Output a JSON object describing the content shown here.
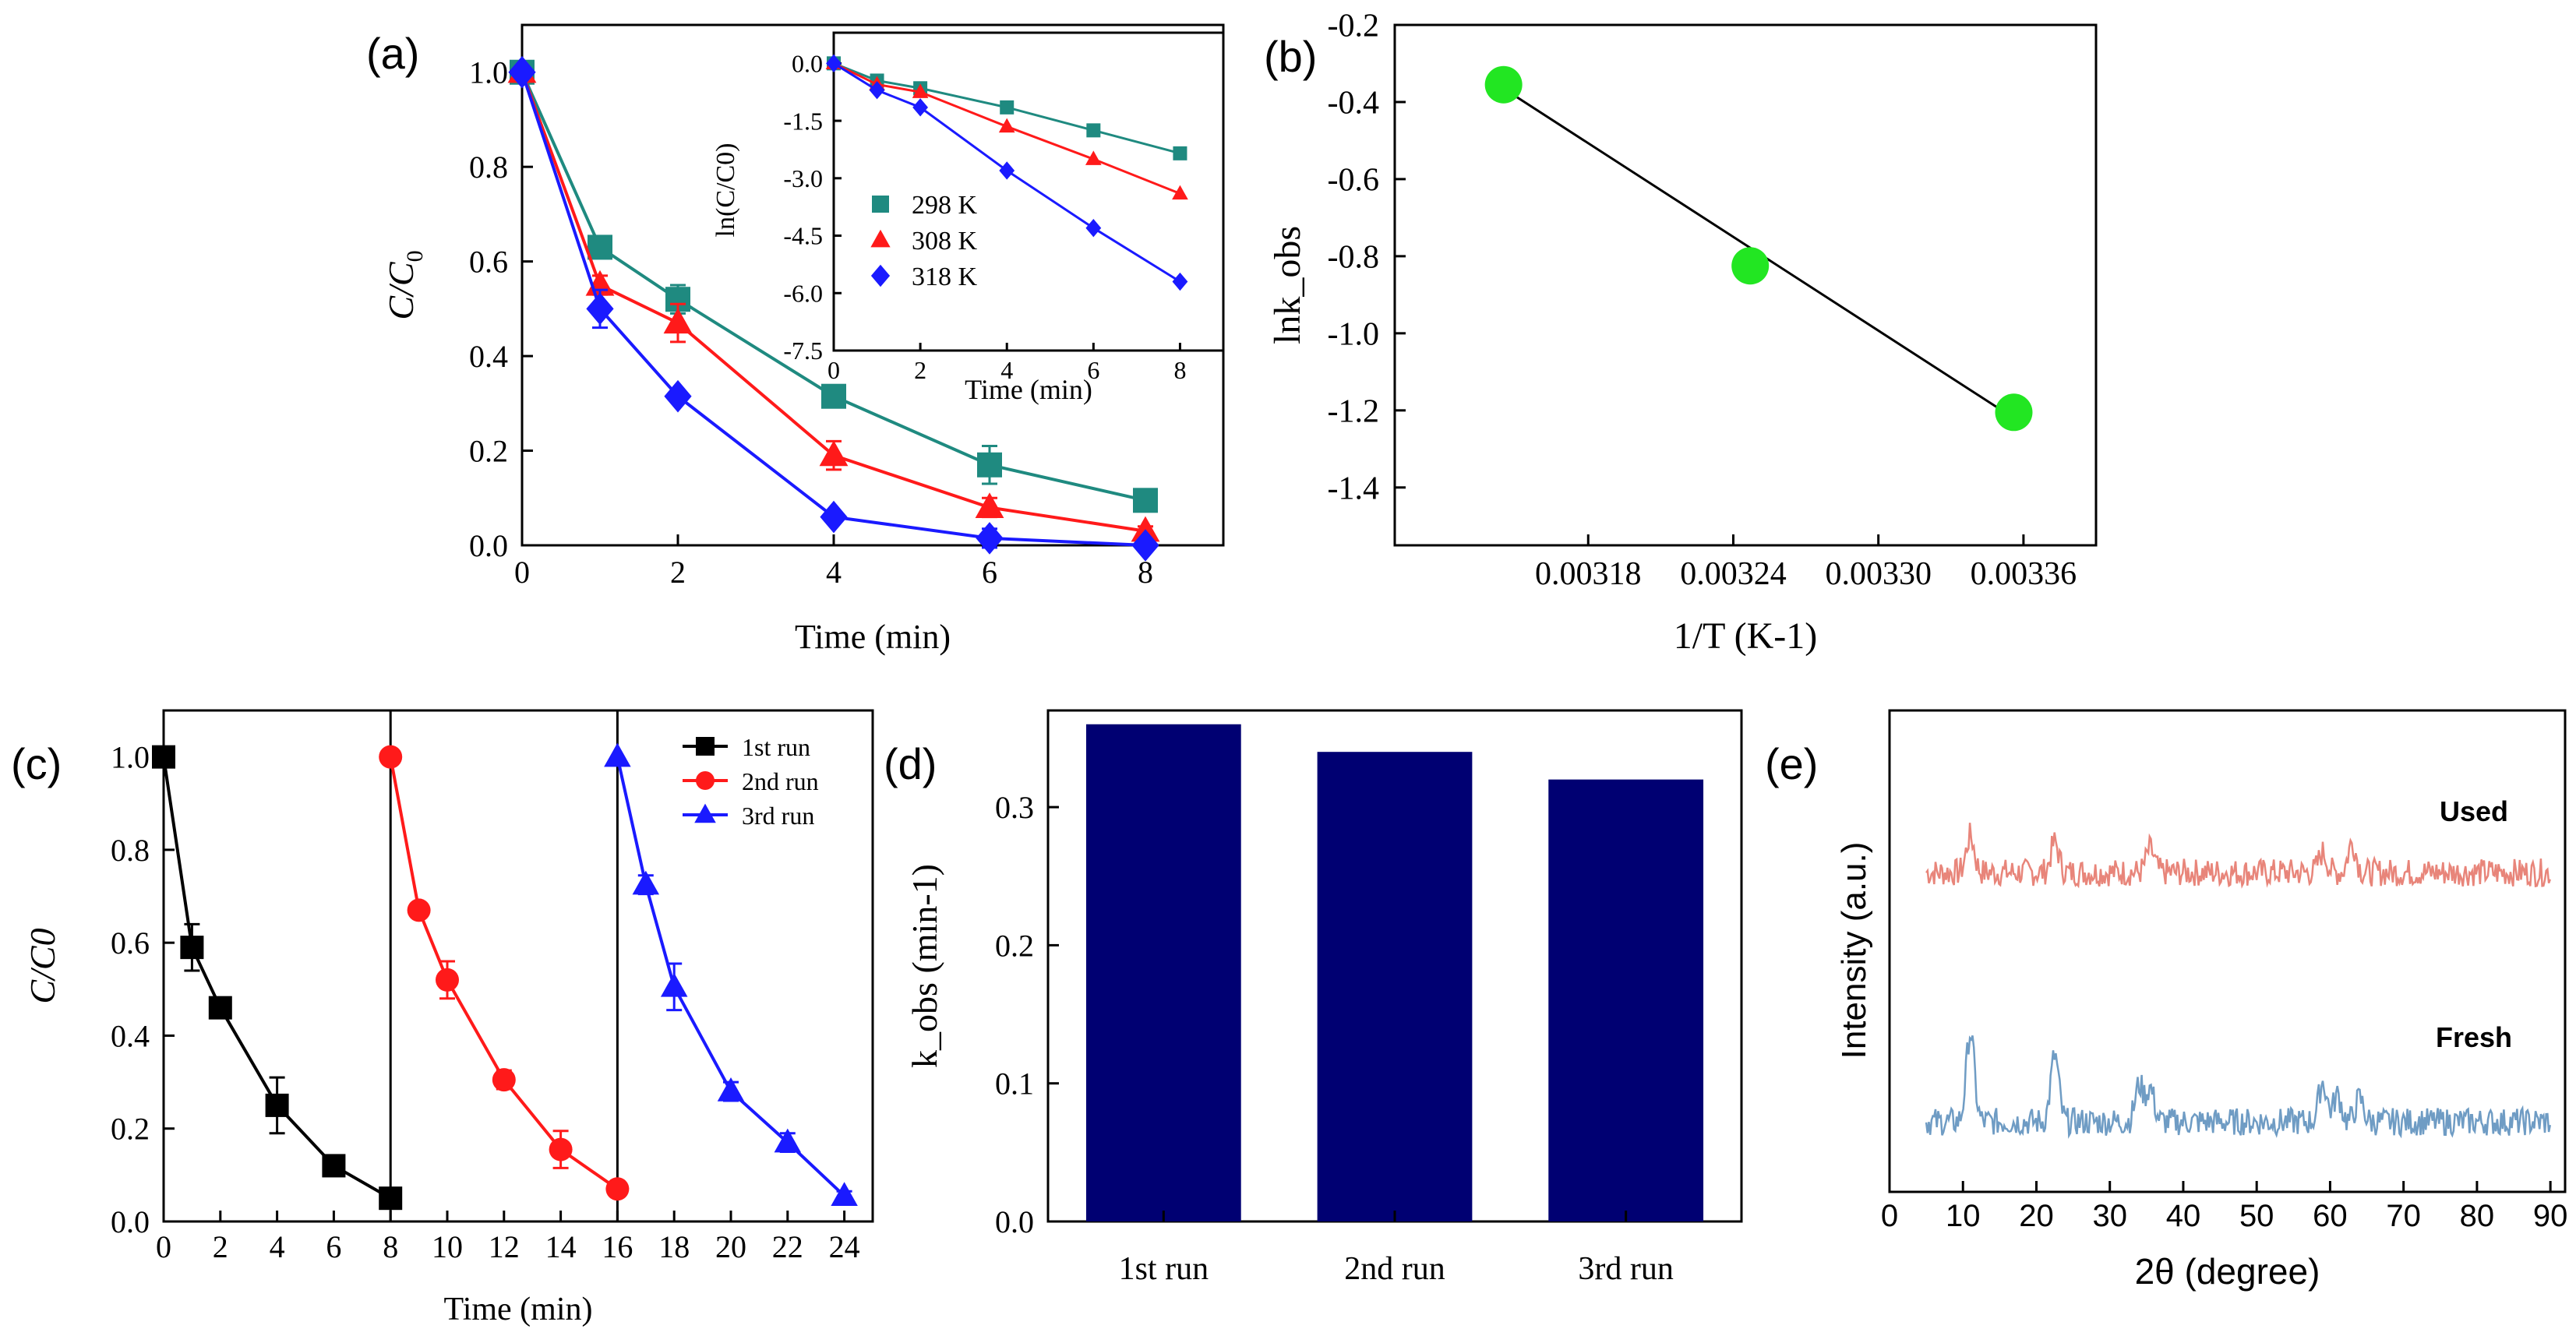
{
  "chart_data": [
    {
      "id": "a",
      "type": "line",
      "panel_label": "(a)",
      "xlabel": "Time (min)",
      "ylabel": "C/C0",
      "ylabel_main": "C/C",
      "ylabel_sub": "0",
      "xlim": [
        0,
        9
      ],
      "ylim": [
        0,
        1.1
      ],
      "xticks": [
        0,
        2,
        4,
        6,
        8
      ],
      "yticks": [
        0.0,
        0.2,
        0.4,
        0.6,
        0.8,
        1.0
      ],
      "xtick_labels": [
        "0",
        "2",
        "4",
        "6",
        "8"
      ],
      "ytick_labels": [
        "0.0",
        "0.2",
        "0.4",
        "0.6",
        "0.8",
        "1.0"
      ],
      "x": [
        0,
        1,
        2,
        4,
        6,
        8
      ],
      "series": [
        {
          "name": "298 K",
          "color": "#1f8a80",
          "marker": "square",
          "values": [
            1.0,
            0.63,
            0.52,
            0.315,
            0.17,
            0.095
          ],
          "errors": [
            0,
            0.02,
            0.03,
            0.015,
            0.04,
            0.01
          ]
        },
        {
          "name": "308 K",
          "color": "#ff1a1a",
          "marker": "triangle",
          "values": [
            1.0,
            0.55,
            0.47,
            0.19,
            0.08,
            0.03
          ],
          "errors": [
            0,
            0.02,
            0.04,
            0.03,
            0.02,
            0.01
          ]
        },
        {
          "name": "318 K",
          "color": "#1a1aff",
          "marker": "diamond",
          "values": [
            1.0,
            0.5,
            0.315,
            0.06,
            0.015,
            0.0
          ],
          "errors": [
            0,
            0.04,
            0.01,
            0.01,
            0.02,
            0
          ]
        }
      ],
      "inset": {
        "xlabel": "Time (min)",
        "ylabel": "ln(C/C0)",
        "xlim": [
          0,
          9
        ],
        "ylim": [
          -7.5,
          0.8
        ],
        "xticks": [
          0,
          2,
          4,
          6,
          8
        ],
        "yticks": [
          0.0,
          -1.5,
          -3.0,
          -4.5,
          -6.0,
          -7.5
        ],
        "xtick_labels": [
          "0",
          "2",
          "4",
          "6",
          "8"
        ],
        "ytick_labels": [
          "0.0",
          "-1.5",
          "-3.0",
          "-4.5",
          "-6.0",
          "-7.5"
        ],
        "x": [
          0,
          1,
          2,
          4,
          6,
          8
        ],
        "series": [
          {
            "name": "298 K",
            "color": "#1f8a80",
            "marker": "square",
            "values": [
              0.0,
              -0.45,
              -0.65,
              -1.15,
              -1.75,
              -2.35
            ]
          },
          {
            "name": "308 K",
            "color": "#ff1a1a",
            "marker": "triangle",
            "values": [
              0.0,
              -0.55,
              -0.75,
              -1.65,
              -2.5,
              -3.4
            ]
          },
          {
            "name": "318 K",
            "color": "#1a1aff",
            "marker": "diamond",
            "values": [
              0.0,
              -0.7,
              -1.15,
              -2.8,
              -4.3,
              -5.7
            ]
          }
        ]
      }
    },
    {
      "id": "b",
      "type": "scatter",
      "panel_label": "(b)",
      "xlabel": "1/T (K-1)",
      "ylabel": "lnk_obs",
      "xlim": [
        0.0031,
        0.00339
      ],
      "ylim": [
        -1.55,
        -0.2
      ],
      "xticks": [
        0.00318,
        0.00324,
        0.0033,
        0.00336
      ],
      "yticks": [
        -0.2,
        -0.4,
        -0.6,
        -0.8,
        -1.0,
        -1.2,
        -1.4
      ],
      "xtick_labels": [
        "0.00318",
        "0.00324",
        "0.00330",
        "0.00336"
      ],
      "ytick_labels": [
        "-0.2",
        "-0.4",
        "-0.6",
        "-0.8",
        "-1.0",
        "-1.2",
        "-1.4"
      ],
      "points": [
        {
          "x": 0.003145,
          "y": -0.355
        },
        {
          "x": 0.003247,
          "y": -0.825
        },
        {
          "x": 0.003356,
          "y": -1.205
        }
      ],
      "fit_line": [
        [
          0.003145,
          -0.365
        ],
        [
          0.003356,
          -1.22
        ]
      ],
      "marker_color": "#22e622"
    },
    {
      "id": "c",
      "type": "line",
      "panel_label": "(c)",
      "xlabel": "Time (min)",
      "ylabel": "C/C0",
      "xlim": [
        0,
        25
      ],
      "ylim": [
        0,
        1.1
      ],
      "xticks": [
        0,
        2,
        4,
        6,
        8,
        10,
        12,
        14,
        16,
        18,
        20,
        22,
        24
      ],
      "yticks": [
        0.0,
        0.2,
        0.4,
        0.6,
        0.8,
        1.0
      ],
      "xtick_labels": [
        "0",
        "2",
        "4",
        "6",
        "8",
        "10",
        "12",
        "14",
        "16",
        "18",
        "20",
        "22",
        "24"
      ],
      "ytick_labels": [
        "0.0",
        "0.2",
        "0.4",
        "0.6",
        "0.8",
        "1.0"
      ],
      "vlines": [
        8,
        16
      ],
      "series": [
        {
          "name": "1st run",
          "color": "#000000",
          "marker": "square",
          "x": [
            0,
            1,
            2,
            4,
            6,
            8
          ],
          "values": [
            1.0,
            0.59,
            0.46,
            0.25,
            0.12,
            0.05
          ],
          "errors": [
            0,
            0.05,
            0.01,
            0.06,
            0.01,
            0.01
          ]
        },
        {
          "name": "2nd run",
          "color": "#ff1a1a",
          "marker": "circle",
          "x": [
            8,
            9,
            10,
            12,
            14,
            16
          ],
          "values": [
            1.0,
            0.67,
            0.52,
            0.305,
            0.155,
            0.07
          ],
          "errors": [
            0,
            0.01,
            0.04,
            0.02,
            0.04,
            0.01
          ]
        },
        {
          "name": "3rd run",
          "color": "#1a1aff",
          "marker": "triangle",
          "x": [
            16,
            17,
            18,
            20,
            22,
            24
          ],
          "values": [
            1.0,
            0.725,
            0.505,
            0.28,
            0.17,
            0.055
          ],
          "errors": [
            0,
            0.02,
            0.05,
            0.02,
            0.02,
            0.01
          ]
        }
      ]
    },
    {
      "id": "d",
      "type": "bar",
      "panel_label": "(d)",
      "xlabel": "",
      "ylabel": "k_obs (min-1)",
      "categories": [
        "1st run",
        "2nd run",
        "3rd run"
      ],
      "values": [
        0.36,
        0.34,
        0.32
      ],
      "ylim": [
        0,
        0.37
      ],
      "yticks": [
        0.0,
        0.1,
        0.2,
        0.3
      ],
      "ytick_labels": [
        "0.0",
        "0.1",
        "0.2",
        "0.3"
      ],
      "bar_color": "#000072"
    },
    {
      "id": "e",
      "type": "line",
      "panel_label": "(e)",
      "xlabel": "2θ (degree)",
      "ylabel": "Intensity (a.u.)",
      "xlim": [
        0,
        92
      ],
      "xticks": [
        0,
        10,
        20,
        30,
        40,
        50,
        60,
        70,
        80,
        90
      ],
      "xtick_labels": [
        "0",
        "10",
        "20",
        "30",
        "40",
        "50",
        "60",
        "70",
        "80",
        "90"
      ],
      "series": [
        {
          "name": "Used",
          "color": "#e8857a",
          "offset": 1.0,
          "peaks": [
            [
              11,
              0.55
            ],
            [
              22.5,
              0.45
            ],
            [
              35.5,
              0.35
            ],
            [
              59,
              0.3
            ],
            [
              63,
              0.45
            ]
          ]
        },
        {
          "name": "Fresh",
          "color": "#6f9cc4",
          "offset": 0.0,
          "peaks": [
            [
              11,
              1.35
            ],
            [
              22.5,
              1.0
            ],
            [
              34,
              0.55
            ],
            [
              35.5,
              0.5
            ],
            [
              59,
              0.6
            ],
            [
              61,
              0.4
            ],
            [
              64,
              0.35
            ]
          ]
        }
      ]
    }
  ]
}
